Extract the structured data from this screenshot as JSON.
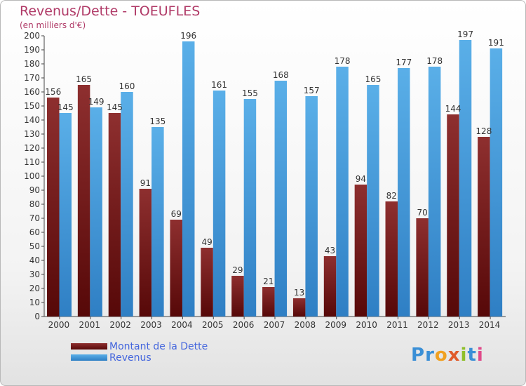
{
  "title": "Revenus/Dette - TOEUFLES",
  "subtitle": "(en milliers d'€)",
  "logo": "Proxiti",
  "legend": {
    "items": [
      {
        "label": "Montant de la Dette",
        "color": "#7a1a1a"
      },
      {
        "label": "Revenus",
        "color": "#3d9be0"
      }
    ]
  },
  "chart_data": {
    "type": "bar",
    "categories": [
      "2000",
      "2001",
      "2002",
      "2003",
      "2004",
      "2005",
      "2006",
      "2007",
      "2008",
      "2009",
      "2010",
      "2011",
      "2012",
      "2013",
      "2014"
    ],
    "series": [
      {
        "name": "Montant de la Dette",
        "color": "#7a1a1a",
        "values": [
          156,
          165,
          145,
          91,
          69,
          49,
          29,
          21,
          13,
          43,
          94,
          82,
          70,
          144,
          128
        ]
      },
      {
        "name": "Revenus",
        "color": "#3d9be0",
        "values": [
          145,
          149,
          160,
          135,
          196,
          161,
          155,
          168,
          157,
          178,
          165,
          177,
          178,
          197,
          191
        ]
      }
    ],
    "ylim": [
      0,
      200
    ],
    "ytick_step": 10,
    "grid": false,
    "legend_position": "bottom-left"
  }
}
